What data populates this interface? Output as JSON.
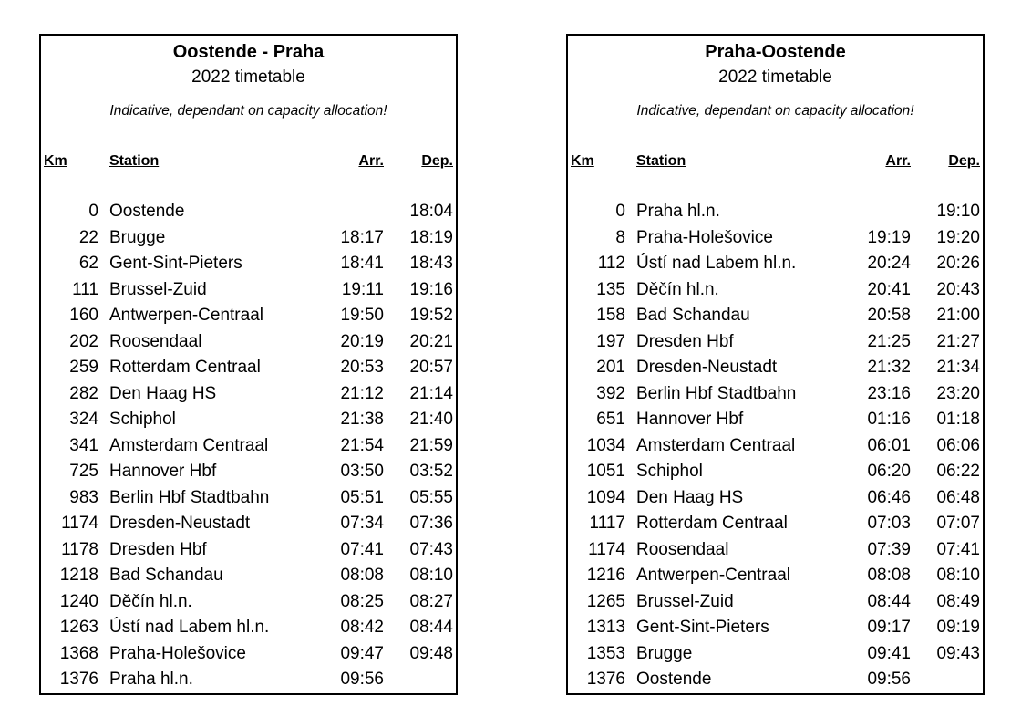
{
  "tables": [
    {
      "title": "Oostende - Praha",
      "subtitle": "2022 timetable",
      "note": "Indicative, dependant on capacity allocation!",
      "columns": {
        "km": "Km",
        "station": "Station",
        "arr": "Arr.",
        "dep": "Dep."
      },
      "rows": [
        {
          "km": "0",
          "station": "Oostende",
          "arr": "",
          "dep": "18:04"
        },
        {
          "km": "22",
          "station": "Brugge",
          "arr": "18:17",
          "dep": "18:19"
        },
        {
          "km": "62",
          "station": "Gent-Sint-Pieters",
          "arr": "18:41",
          "dep": "18:43"
        },
        {
          "km": "111",
          "station": "Brussel-Zuid",
          "arr": "19:11",
          "dep": "19:16"
        },
        {
          "km": "160",
          "station": "Antwerpen-Centraal",
          "arr": "19:50",
          "dep": "19:52"
        },
        {
          "km": "202",
          "station": "Roosendaal",
          "arr": "20:19",
          "dep": "20:21"
        },
        {
          "km": "259",
          "station": "Rotterdam Centraal",
          "arr": "20:53",
          "dep": "20:57"
        },
        {
          "km": "282",
          "station": "Den Haag HS",
          "arr": "21:12",
          "dep": "21:14"
        },
        {
          "km": "324",
          "station": "Schiphol",
          "arr": "21:38",
          "dep": "21:40"
        },
        {
          "km": "341",
          "station": "Amsterdam Centraal",
          "arr": "21:54",
          "dep": "21:59"
        },
        {
          "km": "725",
          "station": "Hannover Hbf",
          "arr": "03:50",
          "dep": "03:52"
        },
        {
          "km": "983",
          "station": "Berlin Hbf Stadtbahn",
          "arr": "05:51",
          "dep": "05:55"
        },
        {
          "km": "1174",
          "station": "Dresden-Neustadt",
          "arr": "07:34",
          "dep": "07:36"
        },
        {
          "km": "1178",
          "station": "Dresden Hbf",
          "arr": "07:41",
          "dep": "07:43"
        },
        {
          "km": "1218",
          "station": "Bad Schandau",
          "arr": "08:08",
          "dep": "08:10"
        },
        {
          "km": "1240",
          "station": "Děčín hl.n.",
          "arr": "08:25",
          "dep": "08:27"
        },
        {
          "km": "1263",
          "station": "Ústí nad Labem hl.n.",
          "arr": "08:42",
          "dep": "08:44"
        },
        {
          "km": "1368",
          "station": "Praha-Holešovice",
          "arr": "09:47",
          "dep": "09:48"
        },
        {
          "km": "1376",
          "station": "Praha hl.n.",
          "arr": "09:56",
          "dep": ""
        }
      ]
    },
    {
      "title": "Praha-Oostende",
      "subtitle": "2022 timetable",
      "note": "Indicative, dependant on capacity allocation!",
      "columns": {
        "km": "Km",
        "station": "Station",
        "arr": "Arr.",
        "dep": "Dep."
      },
      "rows": [
        {
          "km": "0",
          "station": "Praha hl.n.",
          "arr": "",
          "dep": "19:10"
        },
        {
          "km": "8",
          "station": "Praha-Holešovice",
          "arr": "19:19",
          "dep": "19:20"
        },
        {
          "km": "112",
          "station": "Ústí nad Labem hl.n.",
          "arr": "20:24",
          "dep": "20:26"
        },
        {
          "km": "135",
          "station": "Děčín hl.n.",
          "arr": "20:41",
          "dep": "20:43"
        },
        {
          "km": "158",
          "station": "Bad Schandau",
          "arr": "20:58",
          "dep": "21:00"
        },
        {
          "km": "197",
          "station": "Dresden Hbf",
          "arr": "21:25",
          "dep": "21:27"
        },
        {
          "km": "201",
          "station": "Dresden-Neustadt",
          "arr": "21:32",
          "dep": "21:34"
        },
        {
          "km": "392",
          "station": "Berlin Hbf Stadtbahn",
          "arr": "23:16",
          "dep": "23:20"
        },
        {
          "km": "651",
          "station": "Hannover Hbf",
          "arr": "01:16",
          "dep": "01:18"
        },
        {
          "km": "1034",
          "station": "Amsterdam Centraal",
          "arr": "06:01",
          "dep": "06:06"
        },
        {
          "km": "1051",
          "station": "Schiphol",
          "arr": "06:20",
          "dep": "06:22"
        },
        {
          "km": "1094",
          "station": "Den Haag HS",
          "arr": "06:46",
          "dep": "06:48"
        },
        {
          "km": "1117",
          "station": "Rotterdam Centraal",
          "arr": "07:03",
          "dep": "07:07"
        },
        {
          "km": "1174",
          "station": "Roosendaal",
          "arr": "07:39",
          "dep": "07:41"
        },
        {
          "km": "1216",
          "station": "Antwerpen-Centraal",
          "arr": "08:08",
          "dep": "08:10"
        },
        {
          "km": "1265",
          "station": "Brussel-Zuid",
          "arr": "08:44",
          "dep": "08:49"
        },
        {
          "km": "1313",
          "station": "Gent-Sint-Pieters",
          "arr": "09:17",
          "dep": "09:19"
        },
        {
          "km": "1353",
          "station": "Brugge",
          "arr": "09:41",
          "dep": "09:43"
        },
        {
          "km": "1376",
          "station": "Oostende",
          "arr": "09:56",
          "dep": ""
        }
      ]
    }
  ]
}
